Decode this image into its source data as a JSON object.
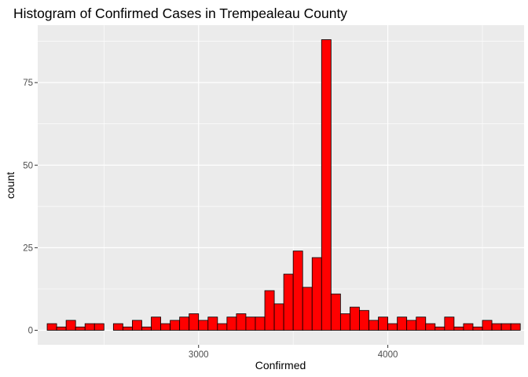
{
  "chart_data": {
    "type": "bar",
    "title": "Histogram of Confirmed Cases in Trempealeau County",
    "xlabel": "Confirmed",
    "ylabel": "count",
    "xlim": [
      2150,
      4720
    ],
    "ylim": [
      -4.4,
      92.4
    ],
    "x_ticks": [
      3000,
      4000
    ],
    "x_tick_labels": [
      "3000",
      "4000"
    ],
    "y_ticks": [
      0,
      25,
      50,
      75
    ],
    "y_tick_labels": [
      "0",
      "25",
      "50",
      "75"
    ],
    "grid": true,
    "legend": "none",
    "bin_width": 50,
    "bin_start": 2200,
    "counts": [
      2,
      1,
      3,
      1,
      2,
      2,
      0,
      2,
      1,
      3,
      1,
      4,
      2,
      3,
      4,
      5,
      3,
      4,
      2,
      4,
      5,
      4,
      4,
      12,
      8,
      17,
      24,
      13,
      22,
      88,
      11,
      5,
      7,
      6,
      3,
      4,
      2,
      4,
      3,
      4,
      2,
      1,
      4,
      1,
      2,
      1,
      3,
      2,
      2,
      2
    ],
    "colors": {
      "fill": "#ff0000",
      "stroke": "#000000",
      "panel": "#ebebeb",
      "grid": "#ffffff",
      "tick_label": "#4d4d4d",
      "tick": "#333333"
    }
  }
}
